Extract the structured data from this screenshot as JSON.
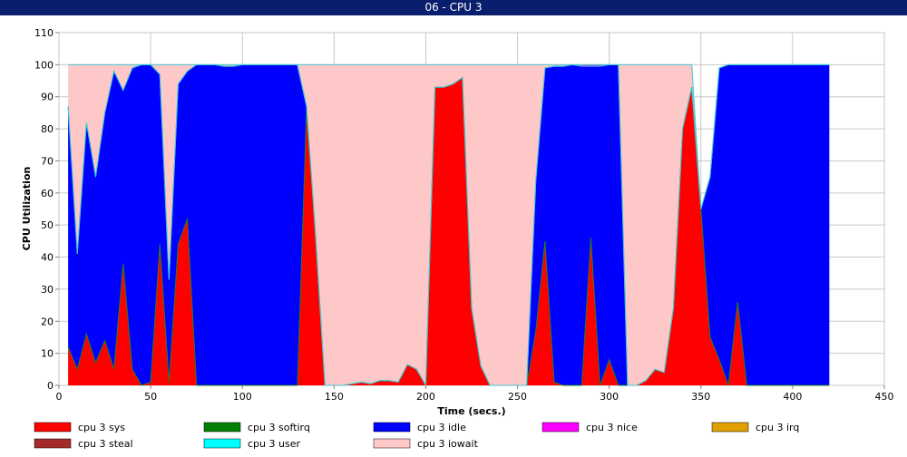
{
  "window": {
    "title": "06 - CPU 3"
  },
  "chart_data": {
    "type": "area",
    "stacked": true,
    "xlabel": "Time (secs.)",
    "ylabel": "CPU Utilization",
    "xlim": [
      0,
      450
    ],
    "ylim": [
      0,
      110
    ],
    "xticks": [
      0,
      50,
      100,
      150,
      200,
      250,
      300,
      350,
      400,
      450
    ],
    "yticks": [
      0,
      10,
      20,
      30,
      40,
      50,
      60,
      70,
      80,
      90,
      100,
      110
    ],
    "grid": true,
    "legend_position": "bottom",
    "x": [
      5,
      10,
      15,
      20,
      25,
      30,
      35,
      40,
      45,
      50,
      55,
      60,
      65,
      70,
      75,
      80,
      85,
      90,
      95,
      100,
      105,
      110,
      115,
      120,
      125,
      130,
      135,
      140,
      145,
      150,
      155,
      160,
      165,
      170,
      175,
      180,
      185,
      190,
      195,
      200,
      205,
      210,
      215,
      220,
      225,
      230,
      235,
      240,
      245,
      250,
      255,
      260,
      265,
      270,
      275,
      280,
      285,
      290,
      295,
      300,
      305,
      310,
      315,
      320,
      325,
      330,
      335,
      340,
      345,
      350,
      355,
      360,
      365,
      370,
      375,
      380,
      385,
      390,
      395,
      400,
      405,
      410,
      415,
      420
    ],
    "series": [
      {
        "name": "cpu 3 sys",
        "color": "#ff0000",
        "values": [
          12,
          5,
          16,
          7,
          14,
          5,
          38,
          5,
          0,
          1,
          44,
          1,
          44,
          52,
          0,
          0,
          0,
          0,
          0,
          0,
          0,
          0,
          0,
          0,
          0,
          0,
          86,
          46,
          0,
          0,
          0,
          0.5,
          1,
          0.5,
          1.5,
          1.5,
          1,
          6.5,
          5,
          0,
          93,
          93,
          94,
          96,
          24,
          6,
          0,
          0,
          0,
          0,
          0,
          17,
          45,
          1,
          0,
          0,
          0,
          46,
          0,
          8,
          0,
          0,
          0,
          1.5,
          5,
          4,
          24,
          80,
          93,
          55,
          15,
          8,
          0,
          26,
          0,
          0,
          0,
          0,
          0,
          0,
          0,
          0,
          0,
          0
        ]
      },
      {
        "name": "cpu 3 softirq",
        "color": "#008000",
        "values": [
          0,
          0,
          0,
          0,
          0,
          0,
          0,
          0,
          0,
          0,
          0,
          0,
          0,
          0,
          0,
          0,
          0,
          0,
          0,
          0,
          0,
          0,
          0,
          0,
          0,
          0,
          0,
          0,
          0,
          0,
          0,
          0,
          0,
          0,
          0,
          0,
          0,
          0,
          0,
          0,
          0,
          0,
          0,
          0,
          0,
          0,
          0,
          0,
          0,
          0,
          0,
          0,
          0,
          0,
          0,
          0,
          0,
          0,
          0,
          0,
          0,
          0,
          0,
          0,
          0,
          0,
          0,
          0,
          0,
          0,
          0,
          0,
          0,
          0,
          0,
          0,
          0,
          0,
          0,
          0,
          0,
          0,
          0,
          0
        ]
      },
      {
        "name": "cpu 3 idle",
        "color": "#0000ff",
        "values": [
          75,
          36,
          66,
          58,
          71,
          93,
          54,
          94,
          100,
          99,
          53,
          32,
          50,
          46,
          100,
          100,
          100,
          99.5,
          99.5,
          100,
          100,
          100,
          100,
          100,
          100,
          100,
          1,
          0,
          0,
          0,
          0,
          0,
          0,
          0,
          0,
          0,
          0,
          0,
          0,
          0,
          0,
          0,
          0,
          0,
          0,
          0,
          0,
          0,
          0,
          0,
          0,
          47,
          54,
          98.5,
          99.5,
          100,
          99.5,
          53.5,
          99.5,
          92,
          100,
          0,
          0,
          0,
          0,
          0,
          0,
          0,
          0,
          0,
          50,
          91,
          100,
          74,
          100,
          100,
          100,
          100,
          100,
          100,
          100,
          100,
          100,
          100
        ]
      },
      {
        "name": "cpu 3 nice",
        "color": "#ff00ff",
        "values": [
          0,
          0,
          0,
          0,
          0,
          0,
          0,
          0,
          0,
          0,
          0,
          0,
          0,
          0,
          0,
          0,
          0,
          0,
          0,
          0,
          0,
          0,
          0,
          0,
          0,
          0,
          0,
          0,
          0,
          0,
          0,
          0,
          0,
          0,
          0,
          0,
          0,
          0,
          0,
          0,
          0,
          0,
          0,
          0,
          0,
          0,
          0,
          0,
          0,
          0,
          0,
          0,
          0,
          0,
          0,
          0,
          0.5,
          0.5,
          0.5,
          0,
          0,
          0,
          0,
          0,
          0,
          0,
          0,
          0,
          0,
          0,
          0,
          0,
          0,
          0,
          0,
          0,
          0,
          0,
          0,
          0,
          0,
          0,
          0,
          0
        ]
      },
      {
        "name": "cpu 3 irq",
        "color": "#e0a000",
        "values": [
          0,
          0,
          0,
          0,
          0,
          0,
          0,
          0,
          0,
          0,
          0,
          0,
          0,
          0,
          0,
          0,
          0,
          0,
          0,
          0,
          0,
          0,
          0,
          0,
          0,
          0,
          0,
          0,
          0,
          0,
          0,
          0,
          0,
          0,
          0,
          0,
          0,
          0,
          0,
          0,
          0,
          0,
          0,
          0,
          0,
          0,
          0,
          0,
          0,
          0,
          0,
          0,
          0,
          0,
          0,
          0,
          0,
          0,
          0,
          0,
          0,
          0,
          0,
          0,
          0,
          0,
          0,
          0,
          0,
          0,
          0,
          0,
          0,
          0,
          0,
          0,
          0,
          0,
          0,
          0,
          0,
          0,
          0,
          0
        ]
      },
      {
        "name": "cpu 3 steal",
        "color": "#a52a2a",
        "values": [
          0,
          0,
          0,
          0,
          0,
          0,
          0,
          0,
          0,
          0,
          0,
          0,
          0,
          0,
          0,
          0,
          0,
          0,
          0,
          0,
          0,
          0,
          0,
          0,
          0,
          0,
          0,
          0,
          0,
          0,
          0,
          0,
          0,
          0,
          0,
          0,
          0,
          0,
          0,
          0,
          0,
          0,
          0,
          0,
          0,
          0,
          0,
          0,
          0,
          0,
          0,
          0,
          0,
          0,
          0,
          0,
          0,
          0,
          0,
          0,
          0,
          0,
          0,
          0,
          0,
          0,
          0,
          0,
          0,
          0,
          0,
          0,
          0,
          0,
          0,
          0,
          0,
          0,
          0,
          0,
          0,
          0,
          0,
          0
        ]
      },
      {
        "name": "cpu 3 user",
        "color": "#00ffff",
        "values": [
          0,
          0,
          0,
          0,
          0,
          0,
          0,
          0,
          0,
          0,
          0,
          0,
          0,
          0,
          0,
          0,
          0,
          0,
          0,
          0,
          0,
          0,
          0,
          0,
          0,
          0,
          0,
          0,
          0,
          0,
          0,
          0,
          0,
          0,
          0,
          0,
          0,
          0,
          0,
          0,
          0,
          0,
          0,
          0,
          0,
          0,
          0,
          0,
          0,
          0,
          0,
          0,
          0,
          0,
          0,
          0,
          0,
          0,
          0,
          0,
          0,
          0,
          0,
          0,
          0,
          0,
          0,
          0,
          0,
          0,
          0,
          0,
          0,
          0,
          0,
          0,
          0,
          0,
          0,
          0,
          0,
          0,
          0,
          0
        ]
      },
      {
        "name": "cpu 3 iowait",
        "color": "#ffc8c8",
        "values": [
          13,
          59,
          18,
          35,
          15,
          2,
          8,
          1,
          0,
          0,
          3,
          67,
          6,
          2,
          0,
          0,
          0,
          0.5,
          0.5,
          0,
          0,
          0,
          0,
          0,
          0,
          0,
          13,
          54,
          100,
          100,
          100,
          99.5,
          99,
          99.5,
          98.5,
          98.5,
          99,
          93.5,
          95,
          100,
          7,
          7,
          6,
          4,
          76,
          94,
          100,
          100,
          100,
          100,
          100,
          36,
          1,
          0.5,
          0.5,
          0,
          0,
          0,
          0,
          0,
          0,
          100,
          100,
          98.5,
          95,
          96,
          76,
          20,
          7,
          0,
          0,
          0,
          0,
          0,
          0,
          0,
          0,
          0,
          0,
          0,
          0,
          0,
          0,
          0
        ]
      }
    ]
  }
}
